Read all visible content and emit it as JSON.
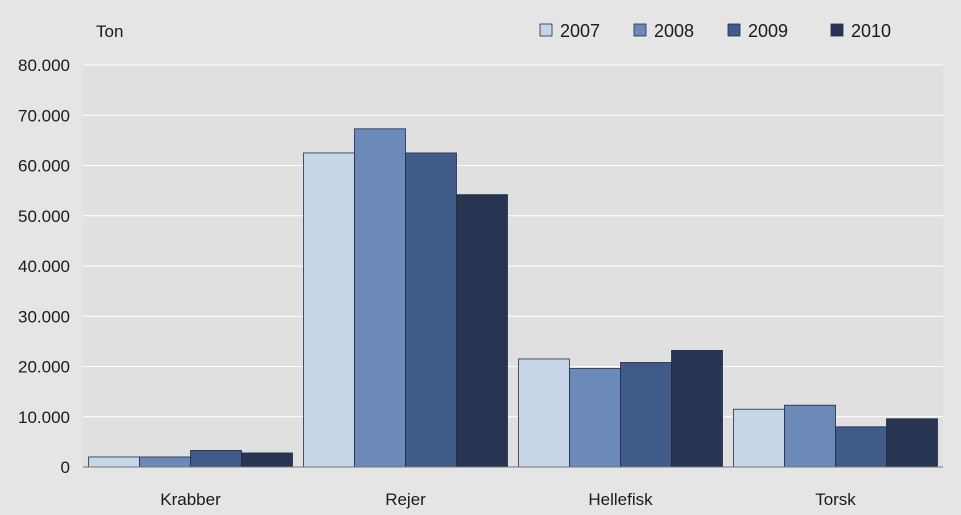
{
  "chart_data": {
    "type": "bar",
    "ylabel": "Ton",
    "categories": [
      "Krabber",
      "Rejer",
      "Hellefisk",
      "Torsk"
    ],
    "series": [
      {
        "name": "2007",
        "color": "#c6d5e8",
        "values": [
          2000,
          62500,
          21500,
          11500
        ]
      },
      {
        "name": "2008",
        "color": "#6b89b9",
        "values": [
          2000,
          67300,
          19600,
          12300
        ]
      },
      {
        "name": "2009",
        "color": "#415b88",
        "values": [
          3300,
          62500,
          20800,
          8000
        ]
      },
      {
        "name": "2010",
        "color": "#273552",
        "values": [
          2800,
          54200,
          23200,
          9600
        ]
      }
    ],
    "ylim": [
      0,
      80000
    ],
    "y_ticks": [
      0,
      10000,
      20000,
      30000,
      40000,
      50000,
      60000,
      70000,
      80000
    ],
    "y_tick_labels": [
      "0",
      "10.000",
      "20.000",
      "30.000",
      "40.000",
      "50.000",
      "60.000",
      "70.000",
      "80.000"
    ],
    "grid": true,
    "legend_position": "top-right",
    "colors": {
      "plot_background": "#e0e0e0",
      "grid": "#ffffff",
      "bar_outline": "#1f2d4a"
    }
  }
}
